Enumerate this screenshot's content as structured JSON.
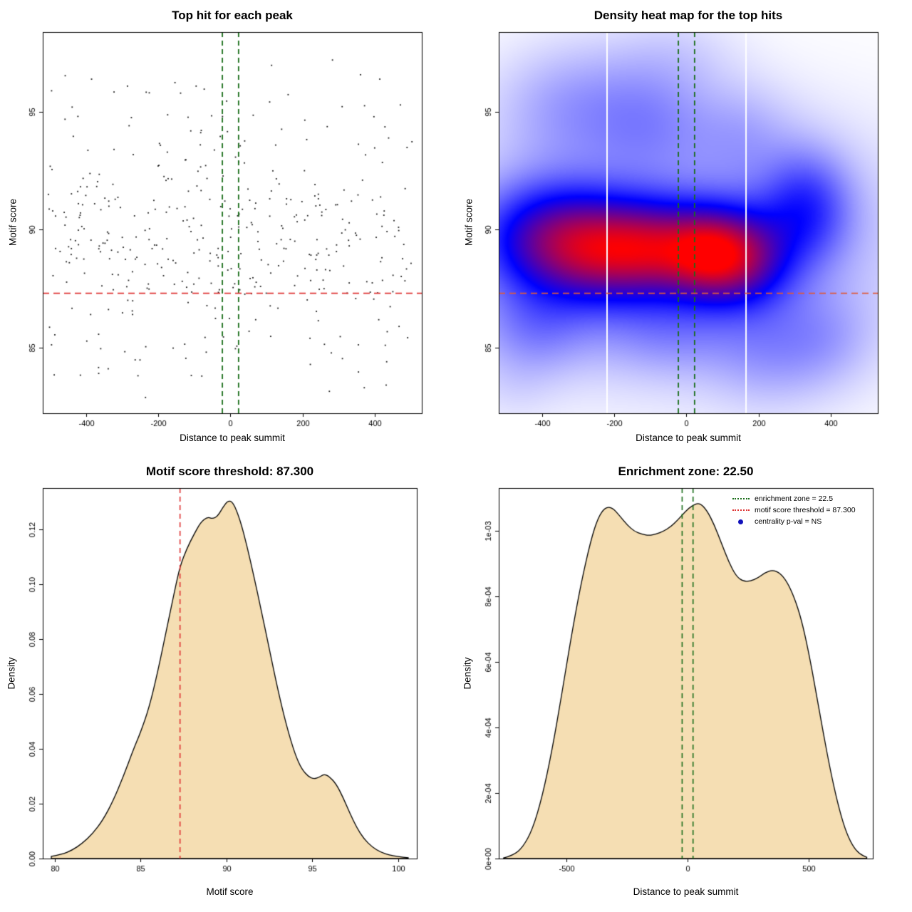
{
  "figure": {
    "background": "#ffffff"
  },
  "chart_data": [
    {
      "type": "scatter",
      "title": "Top hit for each peak",
      "xlabel": "Distance to peak summit",
      "ylabel": "Motif score",
      "xlim": [
        -520,
        530
      ],
      "ylim": [
        82.2,
        98.4
      ],
      "xticks": [
        -400,
        -200,
        0,
        200,
        400
      ],
      "xtick_labels": [
        "-400",
        "-200",
        "0",
        "200",
        "400"
      ],
      "yticks": [
        85,
        90,
        95
      ],
      "ytick_labels": [
        "85",
        "90",
        "95"
      ],
      "point_color": "#000000",
      "points_spec": {
        "n": 420,
        "seed": 11,
        "x_uniform": [
          -505,
          505
        ],
        "y_mixture": [
          {
            "mean": 89.3,
            "sd": 1.9,
            "weight": 0.75
          },
          {
            "mean": 94.0,
            "sd": 1.6,
            "weight": 0.18
          },
          {
            "mean": 85.0,
            "sd": 1.2,
            "weight": 0.07
          }
        ],
        "y_clamp": [
          82.5,
          98.3
        ]
      },
      "hlines": [
        {
          "y": 87.3,
          "color": "#de3232",
          "style": "dashed",
          "width": 1.8,
          "meaning": "motif score threshold"
        }
      ],
      "vlines": [
        {
          "x": -22.5,
          "color": "#1a6e1a",
          "style": "dashed",
          "width": 1.8,
          "meaning": "enrichment zone left"
        },
        {
          "x": 22.5,
          "color": "#1a6e1a",
          "style": "dashed",
          "width": 1.8,
          "meaning": "enrichment zone right"
        }
      ]
    },
    {
      "type": "heatmap",
      "title": "Density heat map for the top hits",
      "xlabel": "Distance to peak summit",
      "ylabel": "Motif score",
      "xlim": [
        -520,
        530
      ],
      "ylim": [
        82.2,
        98.4
      ],
      "xticks": [
        -400,
        -200,
        0,
        200,
        400
      ],
      "xtick_labels": [
        "-400",
        "-200",
        "0",
        "200",
        "400"
      ],
      "yticks": [
        85,
        90,
        95
      ],
      "ytick_labels": [
        "85",
        "90",
        "95"
      ],
      "colormap": [
        "#ffffff",
        "#0000ff",
        "#ff0000"
      ],
      "kernels": [
        [
          -390,
          89.6,
          130,
          1.6,
          0.9
        ],
        [
          -240,
          89.1,
          110,
          1.5,
          0.88
        ],
        [
          -90,
          89.2,
          100,
          1.4,
          0.95
        ],
        [
          60,
          89.0,
          85,
          1.3,
          1.15
        ],
        [
          170,
          88.8,
          90,
          1.4,
          0.82
        ],
        [
          330,
          90.9,
          85,
          1.6,
          0.55
        ],
        [
          -300,
          95.2,
          150,
          1.8,
          0.25
        ],
        [
          -90,
          94.6,
          110,
          1.6,
          0.2
        ],
        [
          150,
          94.0,
          100,
          1.5,
          0.16
        ],
        [
          -30,
          97.4,
          120,
          1.3,
          0.09
        ],
        [
          -420,
          85.9,
          110,
          1.4,
          0.28
        ],
        [
          -60,
          85.7,
          130,
          1.3,
          0.2
        ],
        [
          230,
          84.9,
          120,
          1.6,
          0.2
        ],
        [
          385,
          85.4,
          95,
          1.4,
          0.14
        ],
        [
          0,
          89.2,
          430,
          3.5,
          0.28
        ],
        [
          -480,
          83.3,
          80,
          1.1,
          0.05
        ]
      ],
      "white_gap_lines_x": [
        -220,
        165
      ],
      "hlines": [
        {
          "y": 87.3,
          "color": "#e05a3a",
          "style": "dashed",
          "width": 1.8,
          "meaning": "motif score threshold"
        }
      ],
      "vlines": [
        {
          "x": -22.5,
          "color": "#1a6e1a",
          "style": "dashed",
          "width": 1.8,
          "meaning": "enrichment zone left"
        },
        {
          "x": 22.5,
          "color": "#1a6e1a",
          "style": "dashed",
          "width": 1.8,
          "meaning": "enrichment zone right"
        }
      ]
    },
    {
      "type": "area",
      "title": "Motif score threshold: 87.300",
      "xlabel": "Motif score",
      "ylabel": "Density",
      "xlim": [
        79.3,
        101.1
      ],
      "ylim": [
        0,
        0.135
      ],
      "xticks": [
        80,
        85,
        90,
        95,
        100
      ],
      "xtick_labels": [
        "80",
        "85",
        "90",
        "95",
        "100"
      ],
      "yticks": [
        0,
        0.02,
        0.04,
        0.06,
        0.08,
        0.1,
        0.12
      ],
      "ytick_labels": [
        "0.00",
        "0.02",
        "0.04",
        "0.06",
        "0.08",
        "0.10",
        "0.12"
      ],
      "fill": "#f5deb3",
      "stroke": "#000000",
      "vlines": [
        {
          "x": 87.3,
          "color": "#de3232",
          "style": "dashed",
          "width": 1.6,
          "meaning": "motif score threshold"
        }
      ],
      "curve": [
        [
          79.8,
          0.0008
        ],
        [
          80.4,
          0.0015
        ],
        [
          81,
          0.003
        ],
        [
          81.6,
          0.0055
        ],
        [
          82.2,
          0.009
        ],
        [
          82.8,
          0.014
        ],
        [
          83.4,
          0.021
        ],
        [
          84,
          0.03
        ],
        [
          84.6,
          0.04
        ],
        [
          85,
          0.046
        ],
        [
          85.5,
          0.055
        ],
        [
          86,
          0.068
        ],
        [
          86.5,
          0.083
        ],
        [
          87,
          0.098
        ],
        [
          87.3,
          0.1065
        ],
        [
          87.7,
          0.113
        ],
        [
          88.1,
          0.118
        ],
        [
          88.5,
          0.1225
        ],
        [
          88.9,
          0.1245
        ],
        [
          89.2,
          0.1238
        ],
        [
          89.5,
          0.1248
        ],
        [
          89.8,
          0.128
        ],
        [
          90.1,
          0.1305
        ],
        [
          90.4,
          0.1298
        ],
        [
          90.8,
          0.1235
        ],
        [
          91.2,
          0.114
        ],
        [
          91.6,
          0.103
        ],
        [
          92,
          0.0915
        ],
        [
          92.5,
          0.0765
        ],
        [
          93,
          0.0615
        ],
        [
          93.5,
          0.0485
        ],
        [
          94,
          0.038
        ],
        [
          94.4,
          0.0325
        ],
        [
          94.8,
          0.0298
        ],
        [
          95.1,
          0.029
        ],
        [
          95.4,
          0.0296
        ],
        [
          95.7,
          0.0308
        ],
        [
          96,
          0.0299
        ],
        [
          96.4,
          0.0272
        ],
        [
          96.8,
          0.0223
        ],
        [
          97.2,
          0.0165
        ],
        [
          97.6,
          0.0113
        ],
        [
          98,
          0.0073
        ],
        [
          98.5,
          0.0042
        ],
        [
          99,
          0.0023
        ],
        [
          99.5,
          0.0013
        ],
        [
          100,
          0.0007
        ],
        [
          100.6,
          0.0003
        ]
      ]
    },
    {
      "type": "area",
      "title": "Enrichment zone: 22.50",
      "xlabel": "Distance to peak summit",
      "ylabel": "Density",
      "xlim": [
        -780,
        765
      ],
      "ylim": [
        0,
        0.00113
      ],
      "xticks": [
        -500,
        0,
        500
      ],
      "xtick_labels": [
        "-500",
        "0",
        "500"
      ],
      "yticks": [
        0,
        0.0002,
        0.0004,
        0.0006,
        0.0008,
        0.001
      ],
      "ytick_labels": [
        "0e+00",
        "2e-04",
        "4e-04",
        "6e-04",
        "8e-04",
        "1e-03"
      ],
      "fill": "#f5deb3",
      "stroke": "#000000",
      "vlines": [
        {
          "x": -22.5,
          "color": "#1a6e1a",
          "style": "dashed",
          "width": 1.6,
          "meaning": "enrichment zone left"
        },
        {
          "x": 22.5,
          "color": "#1a6e1a",
          "style": "dashed",
          "width": 1.6,
          "meaning": "enrichment zone right"
        }
      ],
      "legend": {
        "items": [
          {
            "label": "enrichment zone = 22.5",
            "marker": "dotted-line",
            "color": "#1a6e1a"
          },
          {
            "label": "motif score threshold = 87.300",
            "marker": "dotted-line",
            "color": "#de3232"
          },
          {
            "label": "centrality p-val = NS",
            "marker": "dot",
            "color": "#1111bb"
          }
        ]
      },
      "curve": [
        [
          -760,
          2e-06
        ],
        [
          -720,
          1e-05
        ],
        [
          -680,
          3.5e-05
        ],
        [
          -640,
          9e-05
        ],
        [
          -600,
          0.00019
        ],
        [
          -560,
          0.00033
        ],
        [
          -520,
          0.0005
        ],
        [
          -480,
          0.00068
        ],
        [
          -440,
          0.00084
        ],
        [
          -400,
          0.00097
        ],
        [
          -370,
          0.00104
        ],
        [
          -340,
          0.001072
        ],
        [
          -310,
          0.00107
        ],
        [
          -280,
          0.001045
        ],
        [
          -250,
          0.001018
        ],
        [
          -220,
          0.000998
        ],
        [
          -190,
          0.00099
        ],
        [
          -160,
          0.000985
        ],
        [
          -130,
          0.00099
        ],
        [
          -100,
          0.000998
        ],
        [
          -70,
          0.001012
        ],
        [
          -40,
          0.001033
        ],
        [
          -10,
          0.001058
        ],
        [
          20,
          0.001078
        ],
        [
          50,
          0.001085
        ],
        [
          80,
          0.001062
        ],
        [
          110,
          0.001018
        ],
        [
          140,
          0.000962
        ],
        [
          170,
          0.000905
        ],
        [
          200,
          0.000862
        ],
        [
          230,
          0.000845
        ],
        [
          260,
          0.000846
        ],
        [
          290,
          0.000856
        ],
        [
          320,
          0.000872
        ],
        [
          350,
          0.00088
        ],
        [
          380,
          0.000872
        ],
        [
          410,
          0.000845
        ],
        [
          440,
          0.000798
        ],
        [
          470,
          0.00073
        ],
        [
          500,
          0.00063
        ],
        [
          530,
          0.00051
        ],
        [
          560,
          0.000385
        ],
        [
          590,
          0.000268
        ],
        [
          620,
          0.000168
        ],
        [
          650,
          9e-05
        ],
        [
          680,
          4e-05
        ],
        [
          710,
          1.4e-05
        ],
        [
          740,
          4e-06
        ]
      ]
    }
  ]
}
